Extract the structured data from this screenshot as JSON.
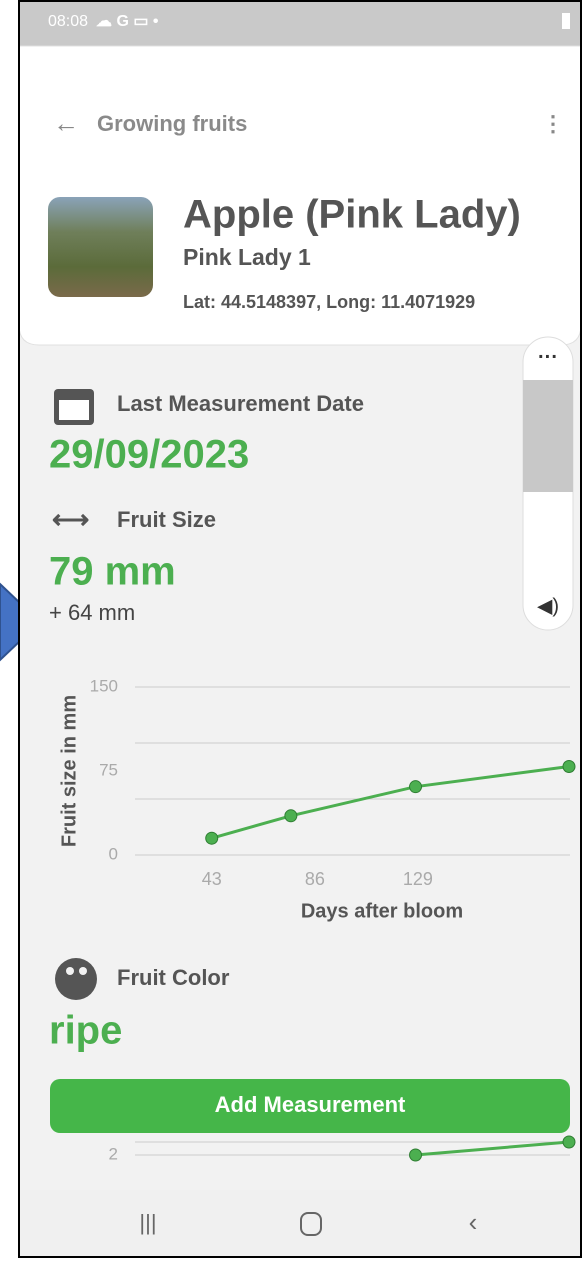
{
  "status_bar": {
    "time": "08:08"
  },
  "header": {
    "back_label": "Growing fruits",
    "title": "Apple (Pink Lady)",
    "subtitle": "Pink Lady 1",
    "location": "Lat: 44.5148397, Long: 11.4071929"
  },
  "last_measurement": {
    "label": "Last Measurement Date",
    "date": "29/09/2023"
  },
  "fruit_size": {
    "label": "Fruit Size",
    "value": "79 mm",
    "change": "+ 64 mm"
  },
  "chart_data": [
    {
      "type": "line",
      "y_label": "Fruit size in mm",
      "x_label": "Days after bloom",
      "x": [
        43,
        76,
        128,
        192
      ],
      "values": [
        15,
        35,
        61,
        79
      ],
      "color": "#4caf50",
      "xlim": [
        11,
        192
      ],
      "ylim": [
        0,
        150
      ],
      "xticks": [
        43,
        86,
        129
      ],
      "yticks": [
        0,
        75,
        150
      ],
      "ygrid": [
        0,
        50,
        100,
        150
      ]
    },
    {
      "type": "line",
      "x": [
        128,
        192
      ],
      "values": [
        2,
        3
      ],
      "color": "#4caf50",
      "xlim": [
        11,
        192
      ],
      "ylim": [
        0,
        3
      ],
      "yticks": [
        2
      ],
      "ygrid": [
        2,
        3
      ]
    }
  ],
  "fruit_color": {
    "label": "Fruit Color",
    "value": "ripe"
  },
  "button": {
    "label": "Add Measurement"
  }
}
